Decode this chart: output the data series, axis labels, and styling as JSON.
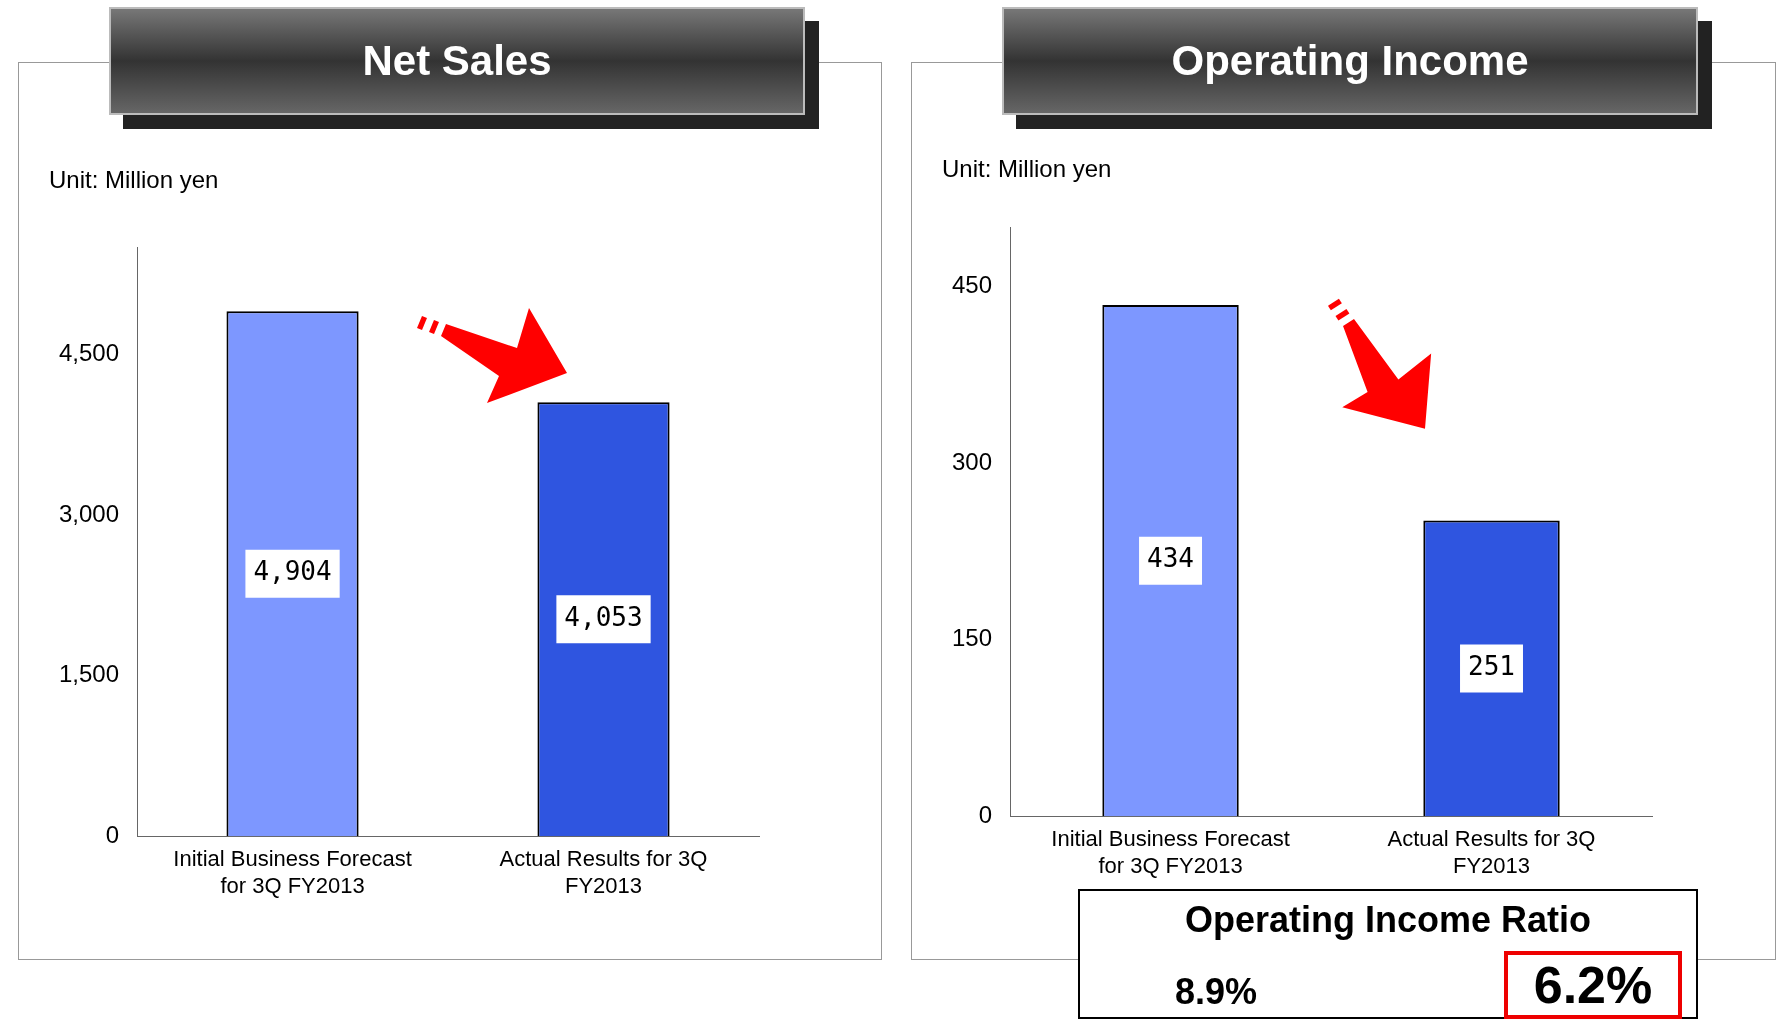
{
  "chart_data": [
    {
      "type": "bar",
      "title": "Net Sales",
      "annotations": [
        "Unit: Million yen"
      ],
      "categories": [
        "Initial Business Forecast for 3Q FY2013",
        "Actual Results for 3Q FY2013"
      ],
      "values": [
        4904,
        4053
      ],
      "value_labels": [
        "4,904",
        "4,053"
      ],
      "colors": [
        "#7d97ff",
        "#2f55e0"
      ],
      "ylim": [
        0,
        5500
      ],
      "yticks": [
        0,
        {
          "value": 1500,
          "label": "1,500"
        },
        {
          "value": 3000,
          "label": "3,000"
        },
        {
          "value": 4500,
          "label": "4,500"
        }
      ],
      "grid": false
    },
    {
      "type": "bar",
      "title": "Operating Income",
      "annotations": [
        "Unit: Million yen",
        "Operating Income Ratio",
        "8.9%",
        "6.2%"
      ],
      "categories": [
        "Initial Business Forecast for 3Q FY2013",
        "Actual Results for 3Q FY2013"
      ],
      "values": [
        434,
        251
      ],
      "colors": [
        "#7d97ff",
        "#2f55e0"
      ],
      "ylim": [
        0,
        500
      ],
      "yticks": [
        0,
        150,
        300,
        450
      ],
      "grid": false,
      "data_labels": true
    }
  ]
}
